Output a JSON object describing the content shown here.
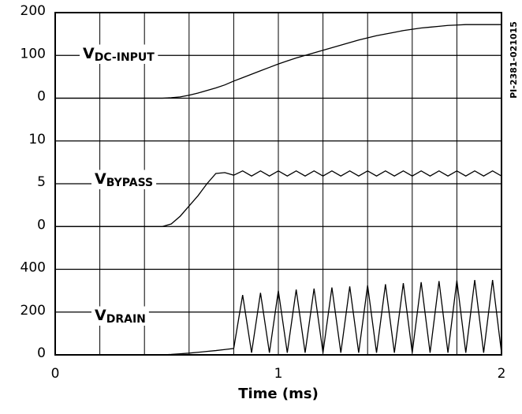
{
  "chart_data": [
    {
      "type": "line",
      "annotation": "V",
      "annotation_sub": "DC-INPUT",
      "code": "PI-2381-021015",
      "color": "#000000",
      "x": [
        0,
        0.04,
        0.08,
        0.12,
        0.16,
        0.2,
        0.24,
        0.28,
        0.32,
        0.36,
        0.4,
        0.44,
        0.48,
        0.52,
        0.56,
        0.6,
        0.64,
        0.68,
        0.72,
        0.76,
        0.8,
        0.84,
        0.88,
        0.92,
        0.96,
        1.0,
        1.04,
        1.08,
        1.12,
        1.16,
        1.2,
        1.24,
        1.28,
        1.32,
        1.36,
        1.4,
        1.44,
        1.48,
        1.52,
        1.56,
        1.6,
        1.64,
        1.68,
        1.72,
        1.76,
        1.8,
        1.84,
        1.88,
        1.92,
        1.96,
        2.0
      ],
      "values": [
        0,
        0,
        0,
        0,
        0,
        0,
        0,
        0,
        0,
        0,
        0,
        0,
        0,
        1,
        3,
        7,
        12,
        18,
        24,
        31,
        40,
        48,
        56,
        64,
        72,
        80,
        87,
        94,
        100,
        106,
        112,
        118,
        124,
        130,
        136,
        141,
        146,
        150,
        154,
        158,
        161,
        164,
        166,
        168,
        170,
        171,
        172,
        172,
        172,
        172,
        172
      ],
      "xlim": [
        0,
        2
      ],
      "ylim": [
        -100,
        200
      ],
      "yticks": [
        0,
        100,
        200
      ]
    },
    {
      "type": "line",
      "annotation": "V",
      "annotation_sub": "BYPASS",
      "color": "#000000",
      "x": [
        0,
        0.04,
        0.08,
        0.12,
        0.16,
        0.2,
        0.24,
        0.28,
        0.32,
        0.36,
        0.4,
        0.44,
        0.48,
        0.52,
        0.56,
        0.6,
        0.64,
        0.68,
        0.72,
        0.76,
        0.8,
        0.84,
        0.88,
        0.92,
        0.96,
        1.0,
        1.04,
        1.08,
        1.12,
        1.16,
        1.2,
        1.24,
        1.28,
        1.32,
        1.36,
        1.4,
        1.44,
        1.48,
        1.52,
        1.56,
        1.6,
        1.64,
        1.68,
        1.72,
        1.76,
        1.8,
        1.84,
        1.88,
        1.92,
        1.96,
        2.0
      ],
      "values": [
        0,
        0,
        0,
        0,
        0,
        0,
        0,
        0,
        0,
        0,
        0,
        0,
        0,
        0.3,
        1.2,
        2.4,
        3.6,
        5.0,
        6.2,
        6.3,
        6.0,
        6.5,
        5.9,
        6.5,
        5.9,
        6.5,
        5.9,
        6.5,
        5.9,
        6.5,
        5.9,
        6.5,
        5.9,
        6.5,
        5.9,
        6.5,
        5.9,
        6.5,
        5.9,
        6.5,
        5.9,
        6.5,
        5.9,
        6.5,
        5.9,
        6.5,
        5.9,
        6.5,
        5.9,
        6.5,
        5.9
      ],
      "xlim": [
        0,
        2
      ],
      "ylim": [
        -5,
        10
      ],
      "yticks": [
        0,
        5,
        10
      ]
    },
    {
      "type": "line",
      "annotation": "V",
      "annotation_sub": "DRAIN",
      "color": "#000000",
      "x": [
        0,
        0.04,
        0.08,
        0.12,
        0.16,
        0.2,
        0.24,
        0.28,
        0.32,
        0.36,
        0.4,
        0.44,
        0.48,
        0.52,
        0.56,
        0.6,
        0.64,
        0.68,
        0.72,
        0.76,
        0.8,
        0.84,
        0.88,
        0.92,
        0.96,
        1.0,
        1.04,
        1.08,
        1.12,
        1.16,
        1.2,
        1.24,
        1.28,
        1.32,
        1.36,
        1.4,
        1.44,
        1.48,
        1.52,
        1.56,
        1.6,
        1.64,
        1.68,
        1.72,
        1.76,
        1.8,
        1.84,
        1.88,
        1.92,
        1.96,
        2.0
      ],
      "values": [
        0,
        0,
        0,
        0,
        0,
        0,
        0,
        0,
        0,
        0,
        0,
        0,
        0,
        2,
        5,
        8,
        12,
        16,
        20,
        25,
        30,
        280,
        10,
        290,
        10,
        300,
        10,
        305,
        10,
        310,
        10,
        315,
        10,
        320,
        10,
        325,
        10,
        330,
        10,
        335,
        10,
        340,
        10,
        345,
        10,
        348,
        10,
        350,
        10,
        350,
        10
      ],
      "xlim": [
        0,
        2
      ],
      "ylim": [
        0,
        400
      ],
      "yticks": [
        0,
        200,
        400
      ],
      "xticks": [
        0,
        1,
        2
      ],
      "xminorticks": [
        0.2,
        0.4,
        0.6,
        0.8,
        1.2,
        1.4,
        1.6,
        1.8
      ],
      "xlabel": "Time (ms)"
    }
  ]
}
